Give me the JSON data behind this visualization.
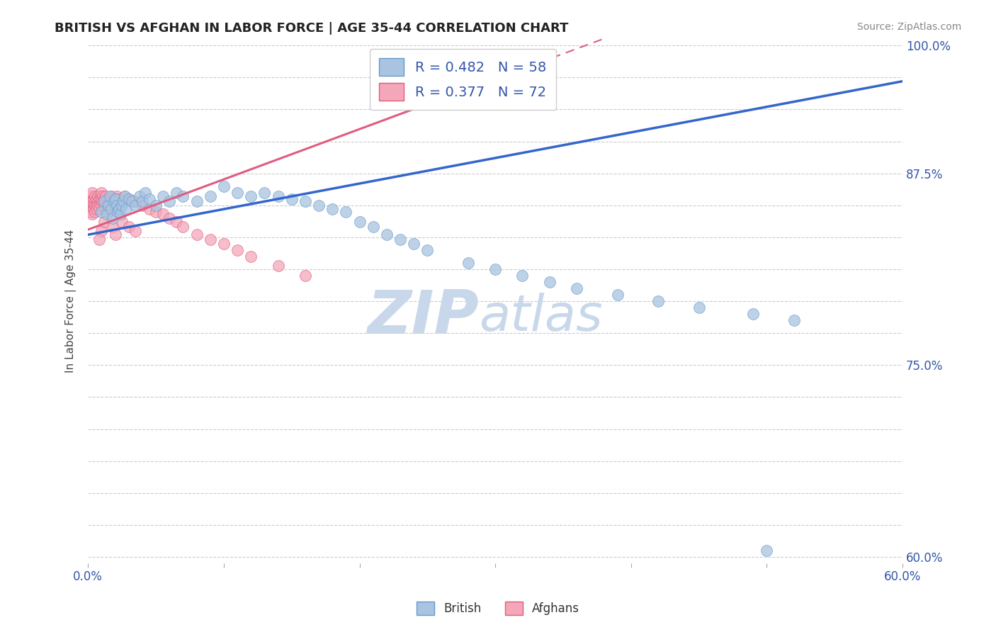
{
  "title": "BRITISH VS AFGHAN IN LABOR FORCE | AGE 35-44 CORRELATION CHART",
  "source_text": "Source: ZipAtlas.com",
  "ylabel": "In Labor Force | Age 35-44",
  "legend_british": "British",
  "legend_afghans": "Afghans",
  "R_british": 0.482,
  "N_british": 58,
  "R_afghans": 0.377,
  "N_afghans": 72,
  "xlim": [
    0.0,
    0.6
  ],
  "ylim": [
    0.595,
    1.005
  ],
  "color_british": "#a8c4e0",
  "color_afghan": "#f4a7b9",
  "line_british": "#3366cc",
  "line_afghan": "#e05c80",
  "watermark_zip": "ZIP",
  "watermark_atlas": "atlas",
  "watermark_color": "#c8d8ea",
  "brit_x": [
    0.01,
    0.012,
    0.014,
    0.015,
    0.016,
    0.017,
    0.018,
    0.019,
    0.02,
    0.021,
    0.022,
    0.023,
    0.024,
    0.025,
    0.026,
    0.027,
    0.028,
    0.03,
    0.032,
    0.035,
    0.038,
    0.04,
    0.042,
    0.045,
    0.05,
    0.055,
    0.06,
    0.065,
    0.07,
    0.08,
    0.09,
    0.1,
    0.11,
    0.12,
    0.13,
    0.14,
    0.15,
    0.16,
    0.17,
    0.18,
    0.19,
    0.2,
    0.21,
    0.22,
    0.23,
    0.24,
    0.25,
    0.28,
    0.3,
    0.32,
    0.34,
    0.36,
    0.39,
    0.42,
    0.45,
    0.49,
    0.52,
    0.5
  ],
  "brit_y": [
    0.87,
    0.878,
    0.868,
    0.875,
    0.882,
    0.872,
    0.865,
    0.878,
    0.88,
    0.875,
    0.87,
    0.872,
    0.868,
    0.875,
    0.878,
    0.882,
    0.872,
    0.88,
    0.878,
    0.875,
    0.882,
    0.878,
    0.885,
    0.88,
    0.875,
    0.882,
    0.878,
    0.885,
    0.882,
    0.878,
    0.882,
    0.89,
    0.885,
    0.882,
    0.885,
    0.882,
    0.88,
    0.878,
    0.875,
    0.872,
    0.87,
    0.862,
    0.858,
    0.852,
    0.848,
    0.845,
    0.84,
    0.83,
    0.825,
    0.82,
    0.815,
    0.81,
    0.805,
    0.8,
    0.795,
    0.79,
    0.785,
    0.605
  ],
  "afg_x": [
    0.0,
    0.001,
    0.002,
    0.002,
    0.003,
    0.003,
    0.003,
    0.004,
    0.004,
    0.004,
    0.005,
    0.005,
    0.005,
    0.005,
    0.006,
    0.006,
    0.006,
    0.007,
    0.007,
    0.007,
    0.008,
    0.008,
    0.008,
    0.009,
    0.009,
    0.01,
    0.01,
    0.01,
    0.011,
    0.011,
    0.012,
    0.012,
    0.013,
    0.013,
    0.014,
    0.015,
    0.015,
    0.016,
    0.017,
    0.018,
    0.019,
    0.02,
    0.021,
    0.022,
    0.024,
    0.025,
    0.027,
    0.03,
    0.035,
    0.04,
    0.045,
    0.05,
    0.055,
    0.06,
    0.065,
    0.07,
    0.08,
    0.09,
    0.1,
    0.11,
    0.12,
    0.14,
    0.16,
    0.01,
    0.008,
    0.012,
    0.015,
    0.018,
    0.02,
    0.025,
    0.03,
    0.035
  ],
  "afg_y": [
    0.878,
    0.875,
    0.882,
    0.87,
    0.878,
    0.885,
    0.868,
    0.88,
    0.875,
    0.872,
    0.882,
    0.878,
    0.875,
    0.87,
    0.88,
    0.875,
    0.872,
    0.882,
    0.878,
    0.875,
    0.88,
    0.875,
    0.872,
    0.882,
    0.878,
    0.885,
    0.88,
    0.875,
    0.882,
    0.878,
    0.88,
    0.875,
    0.882,
    0.878,
    0.875,
    0.88,
    0.875,
    0.878,
    0.882,
    0.88,
    0.875,
    0.878,
    0.882,
    0.88,
    0.875,
    0.878,
    0.882,
    0.88,
    0.878,
    0.875,
    0.872,
    0.87,
    0.868,
    0.865,
    0.862,
    0.858,
    0.852,
    0.848,
    0.845,
    0.84,
    0.835,
    0.828,
    0.82,
    0.855,
    0.848,
    0.862,
    0.87,
    0.858,
    0.852,
    0.862,
    0.858,
    0.855
  ]
}
